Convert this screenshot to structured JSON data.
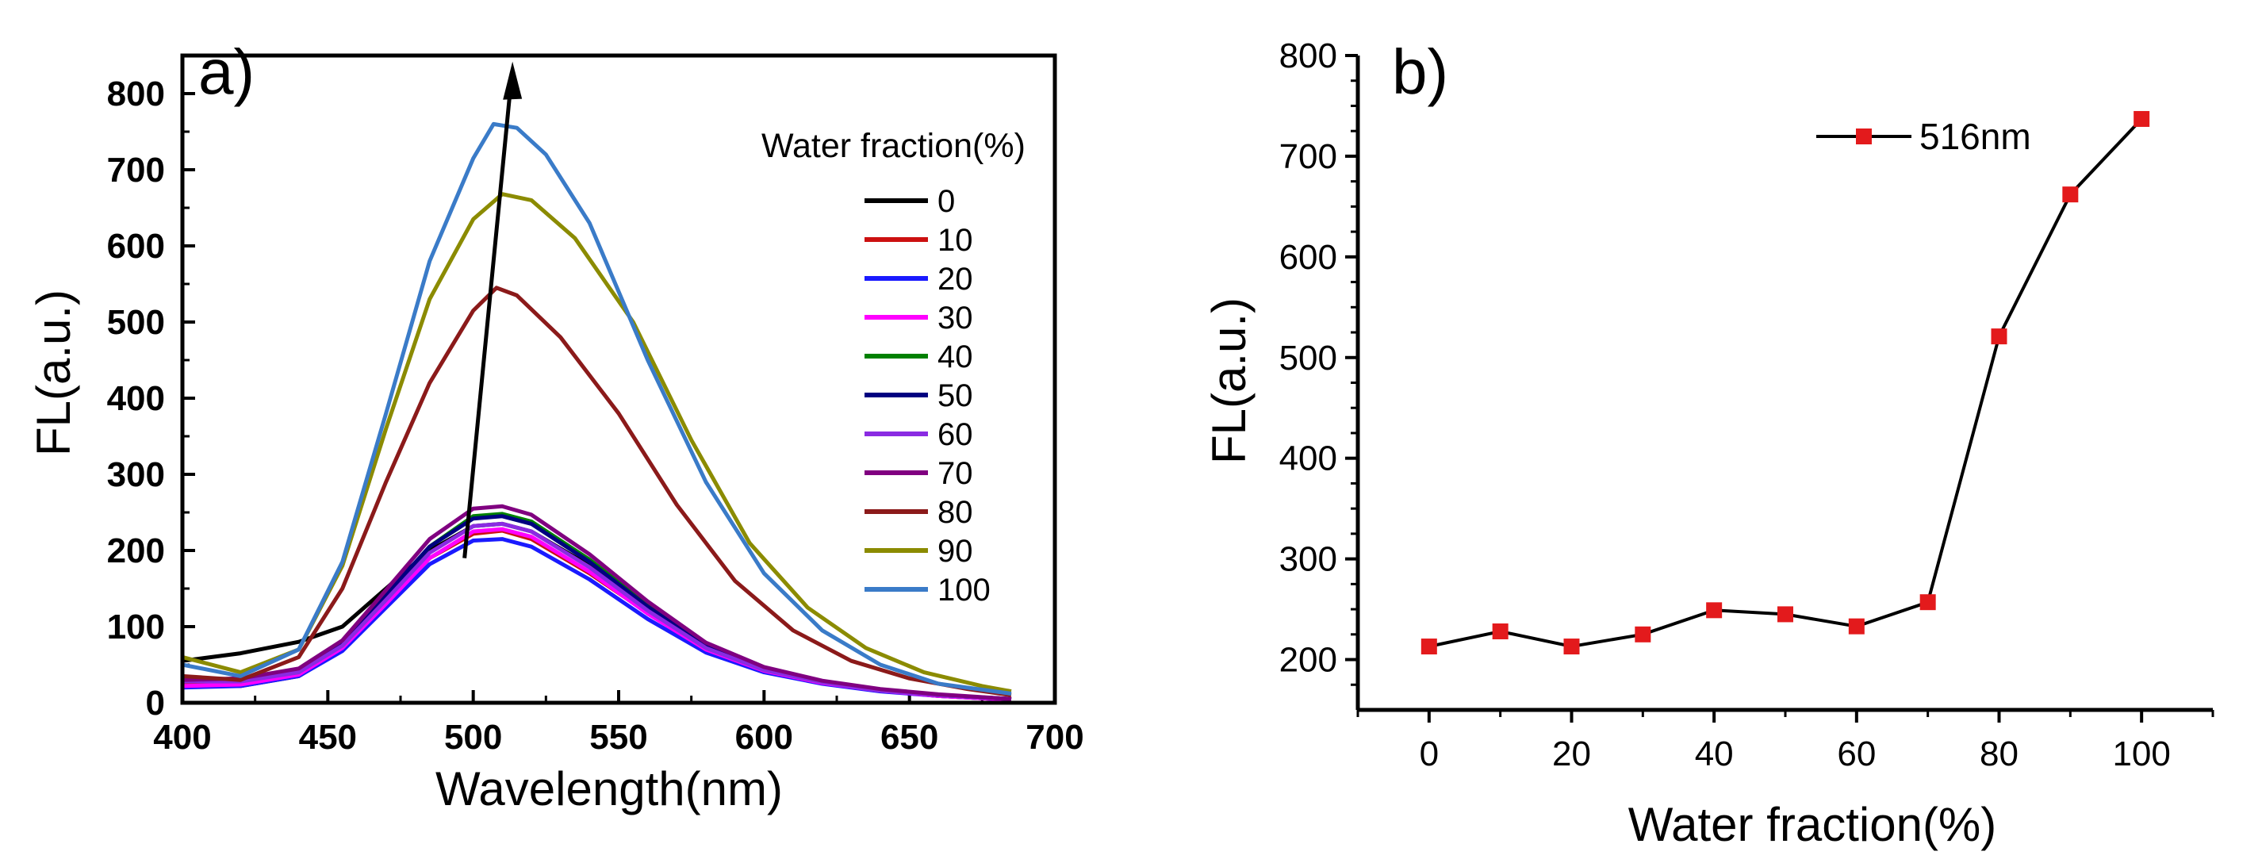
{
  "chart_data": [
    {
      "panel_label": "a)",
      "type": "line",
      "xlabel": "Wavelength(nm)",
      "ylabel": "FL(a.u.)",
      "xlim": [
        400,
        700
      ],
      "ylim": [
        0,
        850
      ],
      "xticks": [
        400,
        450,
        500,
        550,
        600,
        650,
        700
      ],
      "yticks": [
        0,
        100,
        200,
        300,
        400,
        500,
        600,
        700,
        800
      ],
      "legend_title": "Water fraction(%)",
      "legend_position": "right",
      "annotation": "arrow from ~(497, 190) to ~(513, 830) indicating increasing intensity with water fraction",
      "series": [
        {
          "name": "0",
          "color": "#000000",
          "points": [
            [
              400,
              55
            ],
            [
              420,
              65
            ],
            [
              440,
              80
            ],
            [
              455,
              100
            ],
            [
              470,
              150
            ],
            [
              485,
              200
            ],
            [
              500,
              232
            ],
            [
              510,
              235
            ],
            [
              520,
              225
            ],
            [
              540,
              180
            ],
            [
              560,
              125
            ],
            [
              580,
              75
            ],
            [
              600,
              45
            ],
            [
              620,
              28
            ],
            [
              640,
              17
            ],
            [
              660,
              10
            ],
            [
              685,
              5
            ]
          ]
        },
        {
          "name": "10",
          "color": "#cc1010",
          "points": [
            [
              400,
              25
            ],
            [
              420,
              22
            ],
            [
              440,
              35
            ],
            [
              455,
              70
            ],
            [
              470,
              130
            ],
            [
              485,
              190
            ],
            [
              500,
              222
            ],
            [
              510,
              226
            ],
            [
              520,
              215
            ],
            [
              540,
              170
            ],
            [
              560,
              118
            ],
            [
              580,
              70
            ],
            [
              600,
              42
            ],
            [
              620,
              26
            ],
            [
              640,
              16
            ],
            [
              660,
              9
            ],
            [
              685,
              4
            ]
          ]
        },
        {
          "name": "20",
          "color": "#1a1aff",
          "points": [
            [
              400,
              20
            ],
            [
              420,
              22
            ],
            [
              440,
              35
            ],
            [
              455,
              68
            ],
            [
              470,
              125
            ],
            [
              485,
              182
            ],
            [
              500,
              213
            ],
            [
              510,
              215
            ],
            [
              520,
              205
            ],
            [
              540,
              162
            ],
            [
              560,
              110
            ],
            [
              580,
              66
            ],
            [
              600,
              40
            ],
            [
              620,
              25
            ],
            [
              640,
              15
            ],
            [
              660,
              9
            ],
            [
              685,
              4
            ]
          ]
        },
        {
          "name": "30",
          "color": "#ff00ff",
          "points": [
            [
              400,
              22
            ],
            [
              420,
              24
            ],
            [
              440,
              37
            ],
            [
              455,
              72
            ],
            [
              470,
              130
            ],
            [
              485,
              190
            ],
            [
              500,
              225
            ],
            [
              510,
              228
            ],
            [
              520,
              218
            ],
            [
              540,
              172
            ],
            [
              560,
              117
            ],
            [
              580,
              70
            ],
            [
              600,
              42
            ],
            [
              620,
              26
            ],
            [
              640,
              16
            ],
            [
              660,
              9
            ],
            [
              685,
              4
            ]
          ]
        },
        {
          "name": "40",
          "color": "#008000",
          "points": [
            [
              400,
              30
            ],
            [
              420,
              30
            ],
            [
              440,
              42
            ],
            [
              455,
              78
            ],
            [
              470,
              140
            ],
            [
              485,
              205
            ],
            [
              500,
              245
            ],
            [
              510,
              248
            ],
            [
              520,
              238
            ],
            [
              540,
              188
            ],
            [
              560,
              128
            ],
            [
              580,
              76
            ],
            [
              600,
              45
            ],
            [
              620,
              28
            ],
            [
              640,
              17
            ],
            [
              660,
              10
            ],
            [
              685,
              5
            ]
          ]
        },
        {
          "name": "50",
          "color": "#000080",
          "points": [
            [
              400,
              32
            ],
            [
              420,
              31
            ],
            [
              440,
              44
            ],
            [
              455,
              80
            ],
            [
              470,
              142
            ],
            [
              485,
              205
            ],
            [
              500,
              242
            ],
            [
              510,
              245
            ],
            [
              520,
              235
            ],
            [
              540,
              185
            ],
            [
              560,
              126
            ],
            [
              580,
              75
            ],
            [
              600,
              45
            ],
            [
              620,
              28
            ],
            [
              640,
              17
            ],
            [
              660,
              10
            ],
            [
              685,
              5
            ]
          ]
        },
        {
          "name": "60",
          "color": "#8a2be2",
          "points": [
            [
              400,
              28
            ],
            [
              420,
              28
            ],
            [
              440,
              40
            ],
            [
              455,
              75
            ],
            [
              470,
              135
            ],
            [
              485,
              197
            ],
            [
              500,
              232
            ],
            [
              510,
              235
            ],
            [
              520,
              225
            ],
            [
              540,
              178
            ],
            [
              560,
              121
            ],
            [
              580,
              72
            ],
            [
              600,
              43
            ],
            [
              620,
              27
            ],
            [
              640,
              16
            ],
            [
              660,
              10
            ],
            [
              685,
              5
            ]
          ]
        },
        {
          "name": "70",
          "color": "#800080",
          "points": [
            [
              400,
              30
            ],
            [
              420,
              32
            ],
            [
              440,
              45
            ],
            [
              455,
              82
            ],
            [
              470,
              148
            ],
            [
              485,
              215
            ],
            [
              500,
              255
            ],
            [
              510,
              258
            ],
            [
              520,
              247
            ],
            [
              540,
              195
            ],
            [
              560,
              133
            ],
            [
              580,
              79
            ],
            [
              600,
              47
            ],
            [
              620,
              29
            ],
            [
              640,
              18
            ],
            [
              660,
              11
            ],
            [
              685,
              5
            ]
          ]
        },
        {
          "name": "80",
          "color": "#8b1a1a",
          "points": [
            [
              400,
              35
            ],
            [
              420,
              30
            ],
            [
              440,
              60
            ],
            [
              455,
              150
            ],
            [
              470,
              290
            ],
            [
              485,
              420
            ],
            [
              500,
              515
            ],
            [
              508,
              545
            ],
            [
              515,
              535
            ],
            [
              530,
              480
            ],
            [
              550,
              380
            ],
            [
              570,
              260
            ],
            [
              590,
              160
            ],
            [
              610,
              95
            ],
            [
              630,
              55
            ],
            [
              650,
              32
            ],
            [
              670,
              18
            ],
            [
              685,
              10
            ]
          ]
        },
        {
          "name": "90",
          "color": "#8b8b00",
          "points": [
            [
              400,
              60
            ],
            [
              420,
              40
            ],
            [
              440,
              70
            ],
            [
              455,
              180
            ],
            [
              470,
              360
            ],
            [
              485,
              530
            ],
            [
              500,
              635
            ],
            [
              510,
              668
            ],
            [
              520,
              660
            ],
            [
              535,
              610
            ],
            [
              555,
              500
            ],
            [
              575,
              345
            ],
            [
              595,
              210
            ],
            [
              615,
              125
            ],
            [
              635,
              72
            ],
            [
              655,
              40
            ],
            [
              675,
              22
            ],
            [
              685,
              15
            ]
          ]
        },
        {
          "name": "100",
          "color": "#3a7bc8",
          "points": [
            [
              400,
              50
            ],
            [
              420,
              35
            ],
            [
              440,
              70
            ],
            [
              455,
              185
            ],
            [
              470,
              380
            ],
            [
              485,
              580
            ],
            [
              500,
              715
            ],
            [
              507,
              760
            ],
            [
              515,
              755
            ],
            [
              525,
              720
            ],
            [
              540,
              630
            ],
            [
              560,
              450
            ],
            [
              580,
              290
            ],
            [
              600,
              170
            ],
            [
              620,
              95
            ],
            [
              640,
              50
            ],
            [
              660,
              25
            ],
            [
              685,
              12
            ]
          ]
        }
      ]
    },
    {
      "panel_label": "b)",
      "type": "line",
      "xlabel": "Water fraction(%)",
      "ylabel": "FL(a.u.)",
      "xlim": [
        -10,
        110
      ],
      "ylim": [
        150,
        800
      ],
      "xticks": [
        0,
        20,
        40,
        60,
        80,
        100
      ],
      "yticks": [
        200,
        300,
        400,
        500,
        600,
        700,
        800
      ],
      "legend_position": "top-right",
      "series": [
        {
          "name": "516nm",
          "color": "#e31a1c",
          "x": [
            0,
            10,
            20,
            30,
            40,
            50,
            60,
            70,
            80,
            90,
            100
          ],
          "y": [
            213,
            228,
            213,
            225,
            249,
            245,
            233,
            257,
            521,
            662,
            737
          ]
        }
      ]
    }
  ]
}
